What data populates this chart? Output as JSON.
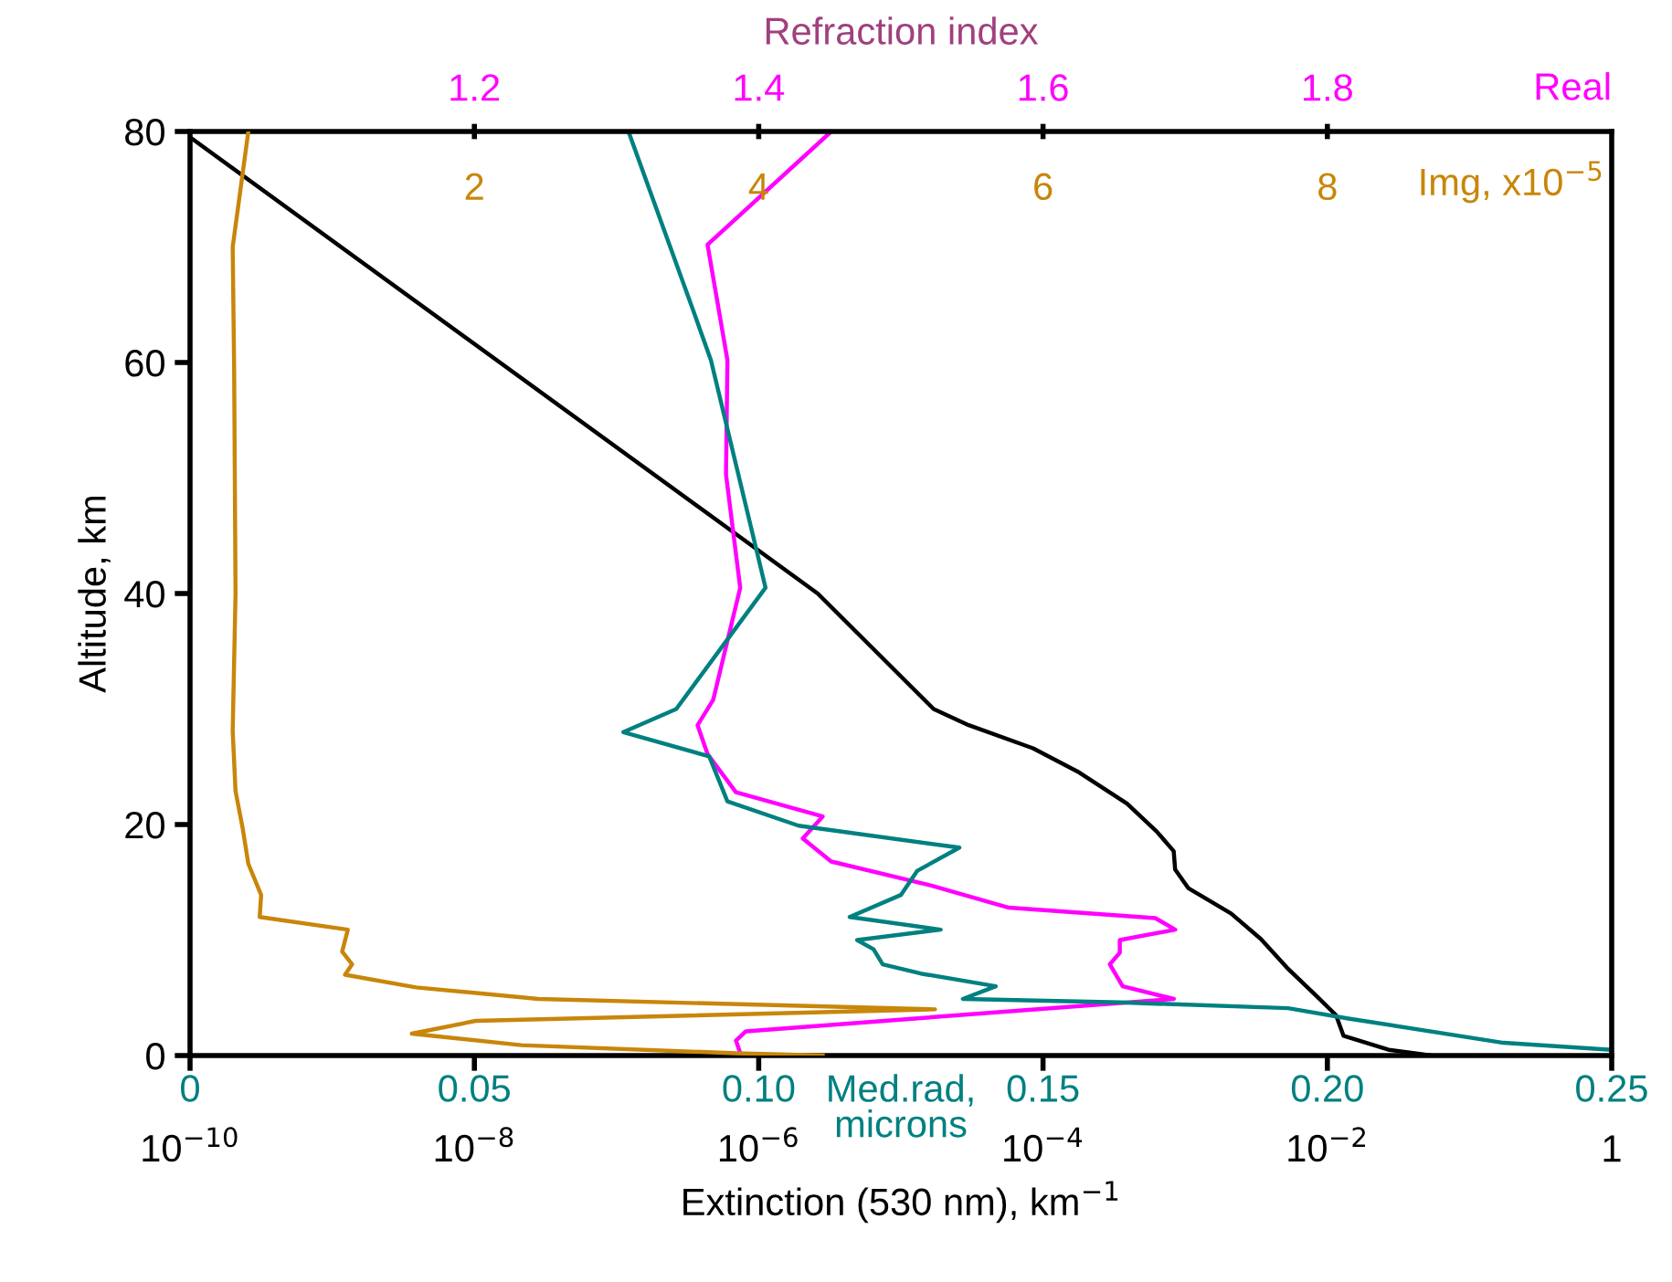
{
  "chart_data": [
    {
      "type": "line",
      "title": "Refraction index",
      "ylabel": "Altitude, km",
      "xlabel": "Extinction (530 nm), km$^{−1}$",
      "x2label": "Real",
      "ylim": [
        0,
        80
      ],
      "yticks": [
        0,
        20,
        40,
        60,
        80
      ],
      "xlim": [
        1e-10,
        1
      ],
      "xticks": [
        {
          "value": 1e-10,
          "label": "10$^{−10}$"
        },
        {
          "value": 1e-08,
          "label": "10$^{−8}$"
        },
        {
          "value": 1e-06,
          "label": "10$^{−6}$"
        },
        {
          "value": 0.0001,
          "label": "10$^{−4}$"
        },
        {
          "value": 0.01,
          "label": "10$^{−2}$"
        },
        1
      ],
      "x2lim": [
        1.0,
        2.0
      ],
      "x2ticks": [
        1.2,
        1.4,
        1.6,
        1.8
      ],
      "log": "x",
      "grid": false,
      "marker": "none",
      "line_style": "solid",
      "series": [
        {
          "color": "#000000",
          "x": [
            1e-10,
            2.6e-06,
            1.7e-05,
            3e-05,
            8.5e-05,
            0.00018,
            0.00039,
            0.00063,
            0.00083,
            0.00085,
            0.00105,
            0.0021,
            0.0034,
            0.0052,
            0.0083,
            0.0115,
            0.013,
            0.027,
            0.054
          ],
          "values": [
            79.5,
            40,
            30,
            28.6,
            26.6,
            24.5,
            21.8,
            19.4,
            17.7,
            16.1,
            14.5,
            12.3,
            10.1,
            7.6,
            5.2,
            3.5,
            1.7,
            0.5,
            0
          ]
        },
        {
          "axis": "x2",
          "color": "#ff00ff",
          "x": [
            1.451,
            1.364,
            1.378,
            1.377,
            1.387,
            1.368,
            1.357,
            1.364,
            1.384,
            1.445,
            1.431,
            1.451,
            1.522,
            1.576,
            1.679,
            1.693,
            1.654,
            1.654,
            1.647,
            1.656,
            1.692,
            1.391,
            1.384,
            1.387
          ],
          "values": [
            80,
            70.2,
            60.2,
            50.3,
            40.5,
            30.8,
            28.6,
            26.1,
            22.8,
            20.7,
            18.8,
            16.8,
            14.7,
            12.8,
            11.9,
            10.9,
            10.0,
            8.9,
            7.9,
            6.0,
            4.9,
            2.1,
            1.3,
            0.2
          ]
        }
      ]
    },
    {
      "type": "line",
      "xlabel": "Med.rad,\nmicrons",
      "x2label": "Img, x10$^{−5}$",
      "tick_labels": "x",
      "ylim": [
        0,
        80
      ],
      "xlim": [
        0,
        0.25
      ],
      "xticks": [
        {
          "value": 0,
          "label": "0"
        },
        {
          "value": 0.05,
          "label": "0.05"
        },
        {
          "value": 0.1,
          "label": "0.10"
        },
        {
          "value": 0.15,
          "label": "0.15"
        },
        {
          "value": 0.2,
          "label": "0.20"
        },
        {
          "value": 0.25,
          "label": "0.25"
        }
      ],
      "x2lim": [
        0,
        10
      ],
      "x2ticks": [
        2,
        4,
        6,
        8
      ],
      "grid": false,
      "marker": "none",
      "line_style": "solid",
      "series": [
        {
          "color": "#008080",
          "x": [
            0.0771,
            0.0887,
            0.0916,
            0.1012,
            0.0855,
            0.0762,
            0.0913,
            0.0945,
            0.107,
            0.1353,
            0.1279,
            0.125,
            0.116,
            0.132,
            0.1173,
            0.1202,
            0.1218,
            0.1285,
            0.1417,
            0.1359,
            0.1635,
            0.1931,
            0.2037,
            0.231,
            0.25
          ],
          "values": [
            80,
            64.2,
            60.2,
            40.5,
            30,
            28,
            25.9,
            22,
            19.9,
            18.0,
            16.0,
            13.9,
            12.0,
            10.9,
            10.0,
            9.2,
            7.9,
            7.1,
            6.0,
            4.9,
            4.6,
            4.1,
            3.2,
            1.1,
            0.5
          ]
        },
        {
          "axis": "x2",
          "color": "#c8860a",
          "x": [
            0.41,
            0.3,
            0.31,
            0.32,
            0.3,
            0.32,
            0.37,
            0.41,
            0.5,
            0.49,
            1.11,
            1.07,
            1.14,
            1.09,
            1.59,
            2.45,
            5.24,
            2.01,
            1.56,
            2.33,
            3.84,
            4.45
          ],
          "values": [
            80,
            70,
            59.8,
            40,
            28.1,
            22.9,
            19.7,
            16.6,
            13.9,
            12.0,
            10.9,
            9.0,
            7.9,
            7.0,
            5.9,
            4.9,
            4.0,
            3.0,
            1.9,
            0.9,
            0.2,
            0
          ]
        }
      ]
    }
  ]
}
